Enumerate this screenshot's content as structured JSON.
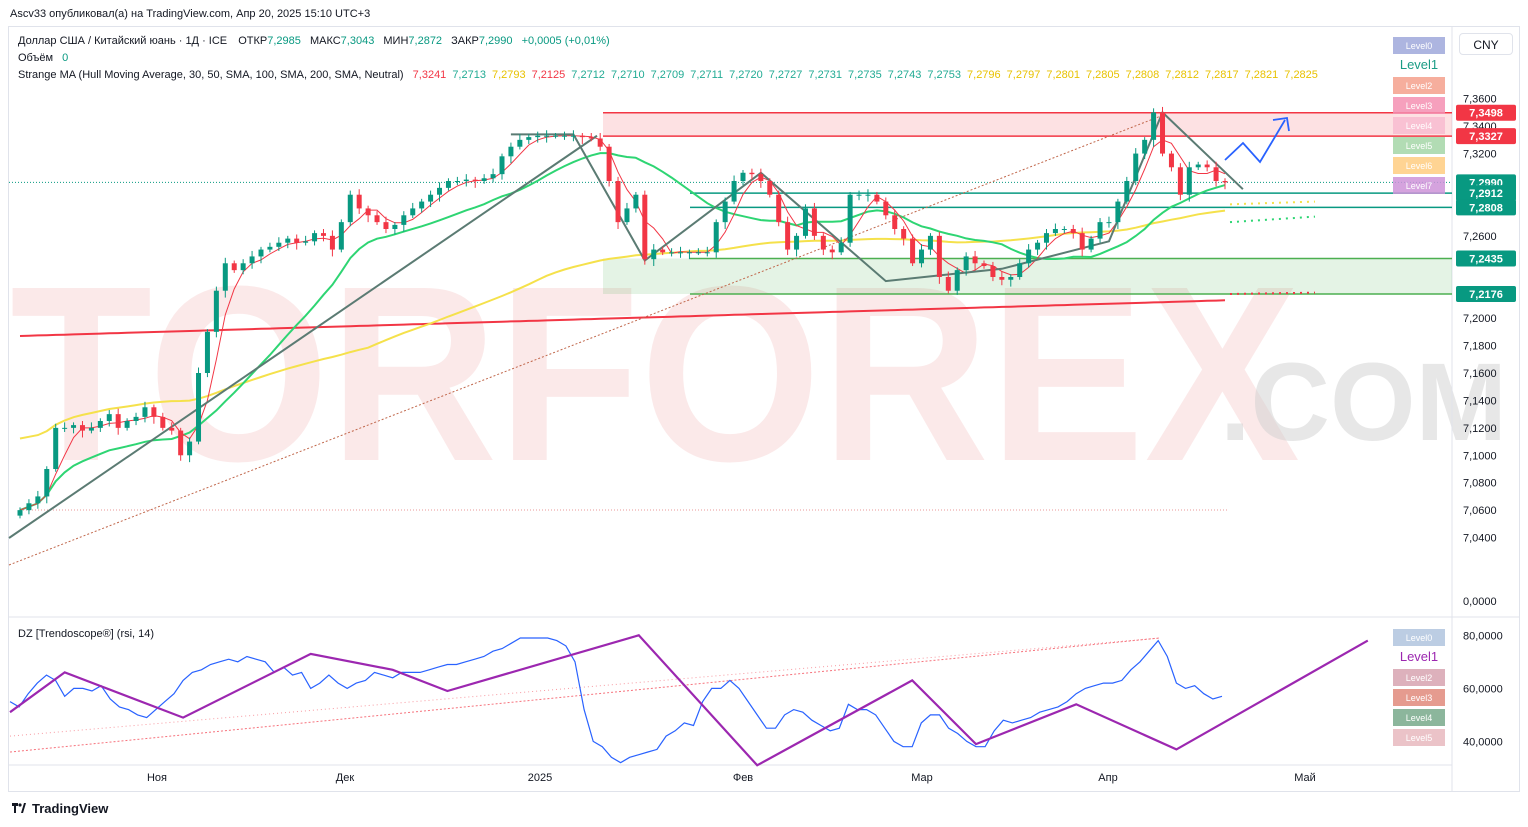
{
  "header": {
    "published": "Ascv33 опубликовал(а) на TradingView.com, Апр 20, 2025 15:10 UTC+3",
    "symbol_line": "Доллар США / Китайский юань · 1Д · ICE",
    "ohlc": {
      "open_label": "ОТКР",
      "open": "7,2985",
      "high_label": "МАКС",
      "high": "7,3043",
      "low_label": "МИН",
      "low": "7,2872",
      "close_label": "ЗАКР",
      "close": "7,2990",
      "change": "+0,0005 (+0,01%)"
    },
    "volume_label": "Объём",
    "volume_value": "0",
    "indicator_name": "Strange MA (Hull Moving Average, 30, 50, SMA, 100, SMA, 200, SMA, Neutral)",
    "indicator_values": [
      {
        "v": "7,3241",
        "c": "#f23645"
      },
      {
        "v": "7,2713",
        "c": "#22ab94"
      },
      {
        "v": "7,2793",
        "c": "#e8c200"
      },
      {
        "v": "7,2125",
        "c": "#f23645"
      },
      {
        "v": "7,2712",
        "c": "#22ab94"
      },
      {
        "v": "7,2710",
        "c": "#22ab94"
      },
      {
        "v": "7,2709",
        "c": "#22ab94"
      },
      {
        "v": "7,2711",
        "c": "#22ab94"
      },
      {
        "v": "7,2720",
        "c": "#22ab94"
      },
      {
        "v": "7,2727",
        "c": "#22ab94"
      },
      {
        "v": "7,2731",
        "c": "#22ab94"
      },
      {
        "v": "7,2735",
        "c": "#22ab94"
      },
      {
        "v": "7,2743",
        "c": "#22ab94"
      },
      {
        "v": "7,2753",
        "c": "#22ab94"
      },
      {
        "v": "7,2796",
        "c": "#e8c200"
      },
      {
        "v": "7,2797",
        "c": "#e8c200"
      },
      {
        "v": "7,2801",
        "c": "#e8c200"
      },
      {
        "v": "7,2805",
        "c": "#e8c200"
      },
      {
        "v": "7,2808",
        "c": "#e8c200"
      },
      {
        "v": "7,2812",
        "c": "#e8c200"
      },
      {
        "v": "7,2817",
        "c": "#e8c200"
      },
      {
        "v": "7,2821",
        "c": "#e8c200"
      },
      {
        "v": "7,2825",
        "c": "#e8c200"
      }
    ],
    "currency": "CNY"
  },
  "watermark": {
    "main": "TORFOREX",
    "sub": ".COM"
  },
  "footer": {
    "brand": "TradingView"
  },
  "chart_data": [
    {
      "type": "candlestick",
      "title": "Доллар США / Китайский юань · 1Д · ICE",
      "ylim": [
        7.02,
        7.37
      ],
      "y_ticks": [
        "7,3600",
        "7,3400",
        "7,3200",
        "7,2600",
        "7,2200",
        "7,2000",
        "7,1800",
        "7,1600",
        "7,1400",
        "7,1200",
        "7,1000",
        "7,0800",
        "7,0600",
        "7,0400",
        "0,0000"
      ],
      "x_ticks": [
        "Ноя",
        "Дек",
        "2025",
        "Фев",
        "Мар",
        "Апр",
        "Май"
      ],
      "price_badges": [
        {
          "value": "7,3498",
          "color": "#f23645"
        },
        {
          "value": "7,3327",
          "color": "#f23645"
        },
        {
          "value": "7,2990",
          "color": "#089981"
        },
        {
          "value": "7,2912",
          "color": "#089981"
        },
        {
          "value": "7,2808",
          "color": "#089981"
        },
        {
          "value": "7,2435",
          "color": "#089981"
        },
        {
          "value": "7,2176",
          "color": "#089981"
        }
      ],
      "closes": [
        7.06,
        7.065,
        7.07,
        7.09,
        7.12,
        7.12,
        7.122,
        7.118,
        7.12,
        7.125,
        7.13,
        7.12,
        7.125,
        7.128,
        7.135,
        7.128,
        7.12,
        7.118,
        7.1,
        7.11,
        7.16,
        7.19,
        7.22,
        7.24,
        7.235,
        7.24,
        7.245,
        7.25,
        7.252,
        7.255,
        7.258,
        7.255,
        7.256,
        7.262,
        7.26,
        7.25,
        7.27,
        7.29,
        7.28,
        7.275,
        7.27,
        7.265,
        7.268,
        7.275,
        7.28,
        7.285,
        7.29,
        7.295,
        7.3,
        7.3,
        7.301,
        7.3,
        7.302,
        7.305,
        7.318,
        7.325,
        7.33,
        7.332,
        7.333,
        7.333,
        7.333,
        7.333,
        7.333,
        7.332,
        7.331,
        7.325,
        7.3,
        7.27,
        7.28,
        7.29,
        7.243,
        7.25,
        7.248,
        7.248,
        7.248,
        7.248,
        7.248,
        7.248,
        7.27,
        7.285,
        7.3,
        7.306,
        7.305,
        7.3,
        7.29,
        7.27,
        7.25,
        7.26,
        7.28,
        7.26,
        7.25,
        7.248,
        7.255,
        7.29,
        7.29,
        7.29,
        7.285,
        7.275,
        7.265,
        7.258,
        7.24,
        7.25,
        7.26,
        7.23,
        7.22,
        7.235,
        7.245,
        7.24,
        7.238,
        7.23,
        7.228,
        7.23,
        7.24,
        7.25,
        7.255,
        7.262,
        7.265,
        7.265,
        7.262,
        7.25,
        7.258,
        7.27,
        7.27,
        7.285,
        7.3,
        7.32,
        7.33,
        7.35,
        7.32,
        7.31,
        7.29,
        7.31,
        7.312,
        7.31,
        7.3,
        7.299
      ],
      "levels": [
        {
          "price": 7.3498,
          "color": "#f23645"
        },
        {
          "price": 7.3327,
          "color": "#f23645"
        },
        {
          "price": 7.2912,
          "color": "#089981"
        },
        {
          "price": 7.2808,
          "color": "#089981"
        },
        {
          "price": 7.2435,
          "color": "#4caf50"
        },
        {
          "price": 7.2176,
          "color": "#4caf50"
        }
      ],
      "zones": [
        {
          "from": 7.3327,
          "to": 7.3498,
          "color": "#f23645"
        },
        {
          "from": 7.2176,
          "to": 7.2435,
          "color": "#4caf50"
        }
      ],
      "level_legend": [
        "Level0",
        "Level1",
        "Level2",
        "Level3",
        "Level4",
        "Level5",
        "Level6",
        "Level7"
      ],
      "level_legend_colors": [
        "#9fa8da",
        "#ffffff",
        "#f5a08c",
        "#f48fb1",
        "#f8bbd0",
        "#a5d6a7",
        "#ffcc80",
        "#ce93d8"
      ]
    },
    {
      "type": "line",
      "title": "DZ [Trendoscope®] (rsi, 14)",
      "ylim": [
        33,
        82
      ],
      "y_ticks": [
        "80,0000",
        "60,0000",
        "40,0000"
      ],
      "rsi": [
        55,
        53,
        58,
        62,
        65,
        63,
        57,
        60,
        60,
        59,
        61,
        56,
        53,
        52,
        50,
        49,
        52,
        55,
        58,
        63,
        66,
        67,
        69,
        70,
        71,
        70,
        72,
        71,
        70,
        66,
        68,
        65,
        66,
        60,
        62,
        65,
        62,
        60,
        62,
        63,
        66,
        65,
        64,
        66,
        66,
        66,
        67,
        68,
        69,
        69,
        70,
        71,
        72,
        74,
        75,
        77,
        79,
        79,
        79,
        79,
        78,
        76,
        70,
        52,
        40,
        38,
        34,
        32,
        34,
        35,
        36,
        37,
        42,
        44,
        47,
        46,
        55,
        60,
        60,
        63,
        60,
        55,
        50,
        45,
        45,
        50,
        52,
        51,
        48,
        46,
        44,
        45,
        54,
        52,
        52,
        50,
        45,
        40,
        38,
        38,
        47,
        50,
        50,
        45,
        43,
        40,
        38,
        38,
        44,
        48,
        47,
        48,
        49,
        51,
        52,
        53,
        55,
        58,
        60,
        61,
        62,
        62,
        63,
        67,
        70,
        74,
        78,
        72,
        62,
        60,
        61,
        58,
        56,
        57
      ],
      "zigzag": [
        [
          0,
          51
        ],
        [
          6,
          66
        ],
        [
          19,
          49
        ],
        [
          33,
          73
        ],
        [
          42,
          67
        ],
        [
          48,
          59
        ],
        [
          69,
          80
        ],
        [
          82,
          31
        ],
        [
          99,
          63
        ],
        [
          106,
          39
        ],
        [
          117,
          54
        ],
        [
          128,
          37
        ],
        [
          149,
          78
        ]
      ],
      "level_legend": [
        "Level0",
        "Level1",
        "Level2",
        "Level3",
        "Level4",
        "Level5"
      ],
      "level_legend_colors": [
        "#b0c4de",
        "#ffffff",
        "#d7a3b0",
        "#e08a7b",
        "#78a98b",
        "#e8b8be"
      ]
    }
  ]
}
